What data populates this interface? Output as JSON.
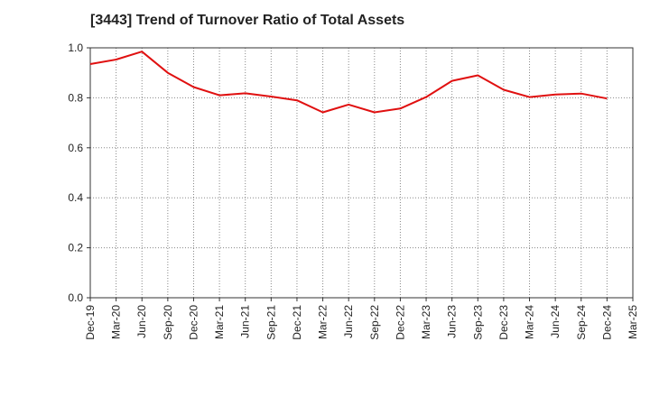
{
  "chart_data": {
    "type": "line",
    "title": "[3443]  Trend of Turnover Ratio of Total Assets",
    "x": [
      "Dec-19",
      "Mar-20",
      "Jun-20",
      "Sep-20",
      "Dec-20",
      "Mar-21",
      "Jun-21",
      "Sep-21",
      "Dec-21",
      "Mar-22",
      "Jun-22",
      "Sep-22",
      "Dec-22",
      "Mar-23",
      "Jun-23",
      "Sep-23",
      "Dec-23",
      "Mar-24",
      "Jun-24",
      "Sep-24",
      "Dec-24",
      "Mar-25"
    ],
    "series": [
      {
        "values": [
          0.935,
          0.953,
          0.985,
          0.9,
          0.843,
          0.81,
          0.818,
          0.805,
          0.79,
          0.742,
          0.773,
          0.742,
          0.757,
          0.803,
          0.868,
          0.89,
          0.832,
          0.803,
          0.813,
          0.817,
          0.797,
          null
        ]
      }
    ],
    "y_ticks": [
      "0.0",
      "0.2",
      "0.4",
      "0.6",
      "0.8",
      "1.0"
    ],
    "ylim": [
      0,
      1.0
    ],
    "grid": true,
    "line_color": "#e01010"
  }
}
